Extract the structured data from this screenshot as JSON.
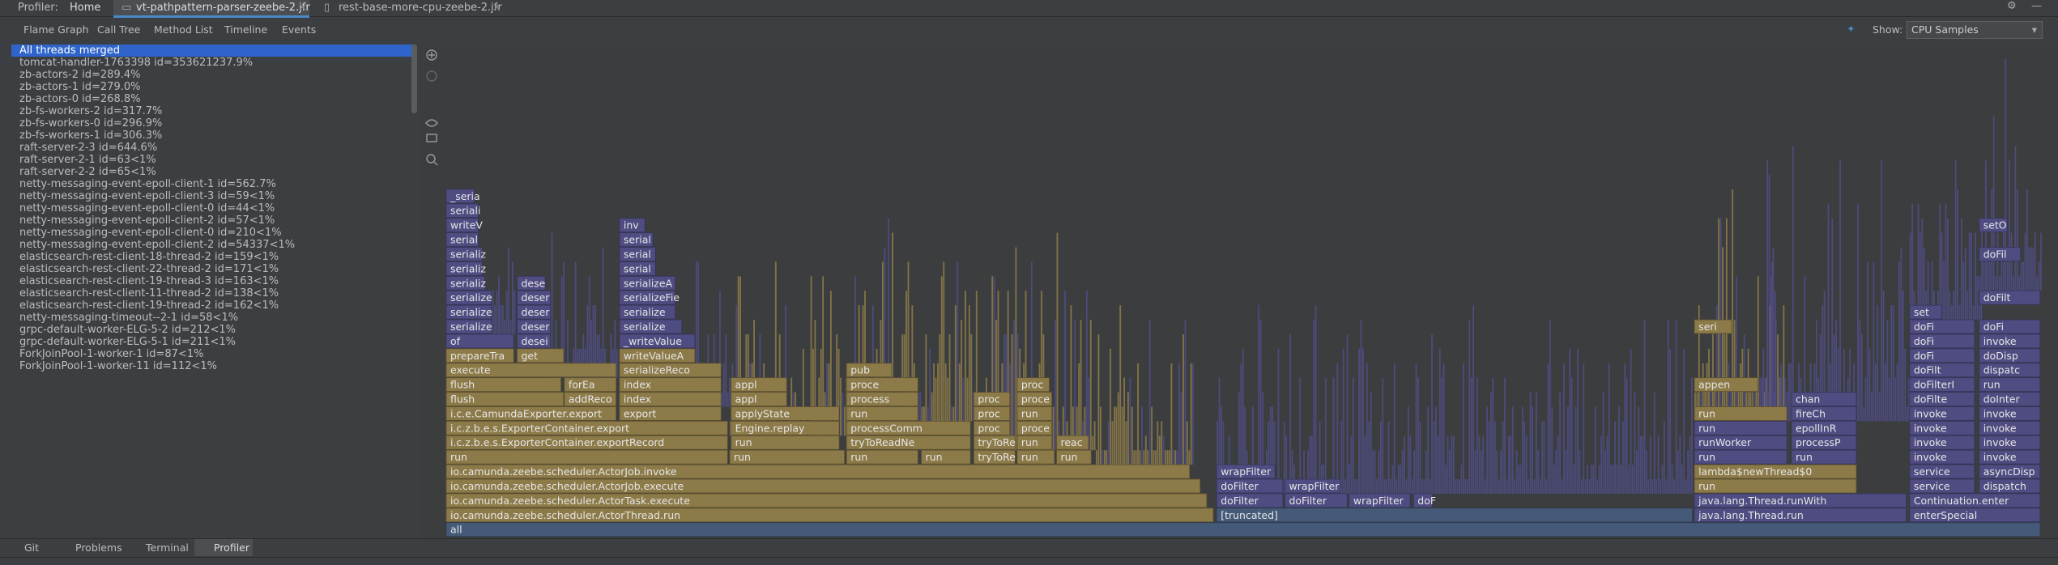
{
  "header": {
    "profiler": "Profiler:",
    "home": "Home",
    "files": [
      "vt-pathpattern-parser-zeebe-2.jfr",
      "rest-base-more-cpu-zeebe-2.jfr"
    ]
  },
  "view_tabs": [
    "Flame Graph",
    "Call Tree",
    "Method List",
    "Timeline",
    "Events"
  ],
  "show": {
    "label": "Show:",
    "value": "CPU Samples"
  },
  "threads": [
    {
      "name": "All threads merged",
      "id": "",
      "share": ""
    },
    {
      "name": "tomcat-handler-1763398",
      "id": "id=3536212",
      "share": "37.9%"
    },
    {
      "name": "zb-actors-2",
      "id": "id=28",
      "share": "9.4%"
    },
    {
      "name": "zb-actors-1",
      "id": "id=27",
      "share": "9.0%"
    },
    {
      "name": "zb-actors-0",
      "id": "id=26",
      "share": "8.8%"
    },
    {
      "name": "zb-fs-workers-2",
      "id": "id=31",
      "share": "7.7%"
    },
    {
      "name": "zb-fs-workers-0",
      "id": "id=29",
      "share": "6.9%"
    },
    {
      "name": "zb-fs-workers-1",
      "id": "id=30",
      "share": "6.3%"
    },
    {
      "name": "raft-server-2-3",
      "id": "id=64",
      "share": "4.6%"
    },
    {
      "name": "raft-server-2-1",
      "id": "id=63",
      "share": "<1%"
    },
    {
      "name": "raft-server-2-2",
      "id": "id=65",
      "share": "<1%"
    },
    {
      "name": "netty-messaging-event-epoll-client-1",
      "id": "id=56",
      "share": "2.7%"
    },
    {
      "name": "netty-messaging-event-epoll-client-3",
      "id": "id=59",
      "share": "<1%"
    },
    {
      "name": "netty-messaging-event-epoll-client-0",
      "id": "id=44",
      "share": "<1%"
    },
    {
      "name": "netty-messaging-event-epoll-client-2",
      "id": "id=57",
      "share": "<1%"
    },
    {
      "name": "netty-messaging-event-epoll-client-0",
      "id": "id=210",
      "share": "<1%"
    },
    {
      "name": "netty-messaging-event-epoll-client-2",
      "id": "id=54337",
      "share": "<1%"
    },
    {
      "name": "elasticsearch-rest-client-18-thread-2",
      "id": "id=159",
      "share": "<1%"
    },
    {
      "name": "elasticsearch-rest-client-22-thread-2",
      "id": "id=171",
      "share": "<1%"
    },
    {
      "name": "elasticsearch-rest-client-19-thread-3",
      "id": "id=163",
      "share": "<1%"
    },
    {
      "name": "elasticsearch-rest-client-11-thread-2",
      "id": "id=138",
      "share": "<1%"
    },
    {
      "name": "elasticsearch-rest-client-19-thread-2",
      "id": "id=162",
      "share": "<1%"
    },
    {
      "name": "netty-messaging-timeout--2-1",
      "id": "id=58",
      "share": "<1%"
    },
    {
      "name": "grpc-default-worker-ELG-5-2",
      "id": "id=212",
      "share": "<1%"
    },
    {
      "name": "grpc-default-worker-ELG-5-1",
      "id": "id=211",
      "share": "<1%"
    },
    {
      "name": "ForkJoinPool-1-worker-1",
      "id": "id=87",
      "share": "<1%"
    },
    {
      "name": "ForkJoinPool-1-worker-11",
      "id": "id=112",
      "share": "<1%"
    }
  ],
  "flame": {
    "frames": [
      "all",
      "io.camunda.zeebe.scheduler.ActorThread.run",
      "[truncated]",
      "java.lang.Thread.run",
      "enterSpecial",
      "io.camunda.zeebe.scheduler.ActorTask.execute",
      "doFilter",
      "doFilter",
      "wrapFilter",
      "doF",
      "java.lang.Thread.runWith",
      "Continuation.enter",
      "io.camunda.zeebe.scheduler.ActorJob.execute",
      "doFilter",
      "wrapFilter",
      "run",
      "service",
      "dispatch",
      "io.camunda.zeebe.scheduler.ActorJob.invoke",
      "wrapFilter",
      "lambda$newThread$0",
      "service",
      "asyncDisp",
      "run",
      "run",
      "run",
      "run",
      "tryToRe",
      "run",
      "run",
      "run",
      "run",
      "invoke",
      "invoke",
      "i.c.z.b.e.s.ExporterContainer.exportRecord",
      "run",
      "tryToReadNe",
      "tryToRe",
      "run",
      "reac",
      "runWorker",
      "processP",
      "invoke",
      "invoke",
      "i.c.z.b.e.s.ExporterContainer.export",
      "Engine.replay",
      "processComm",
      "proc",
      "proce",
      "run",
      "epollInR",
      "invoke",
      "invoke",
      "i.c.e.CamundaExporter.export",
      "export",
      "applyState",
      "run",
      "proc",
      "run",
      "run",
      "fireCh",
      "invoke",
      "invoke",
      "flush",
      "addReco",
      "index",
      "appl",
      "process",
      "proc",
      "proce",
      "chan",
      "doFilte",
      "doInter",
      "flush",
      "forEa",
      "index",
      "appl",
      "proce",
      "proc",
      "appen",
      "doFilterI",
      "run",
      "execute",
      "serializeReco",
      "pub",
      "doFilt",
      "dispatc",
      "prepareTra",
      "get",
      "writeValueA",
      "doFi",
      "doDisp",
      "of",
      "desei",
      "_writeValue",
      "doFi",
      "invoke",
      "serialize",
      "deser",
      "serialize",
      "seri",
      "doFi",
      "doFi",
      "serialize",
      "deser",
      "serialize",
      "set",
      "serialize",
      "deser",
      "serializeFie",
      "doFilt",
      "serializ",
      "dese",
      "serializeA",
      "serializ",
      "serial",
      "serializ",
      "serial",
      "doFil",
      "serial",
      "serial",
      "writeV",
      "inv",
      "setO",
      "seriali",
      "_seria"
    ]
  },
  "bottom_tabs": [
    "Git",
    "Problems",
    "Terminal",
    "Profiler"
  ]
}
